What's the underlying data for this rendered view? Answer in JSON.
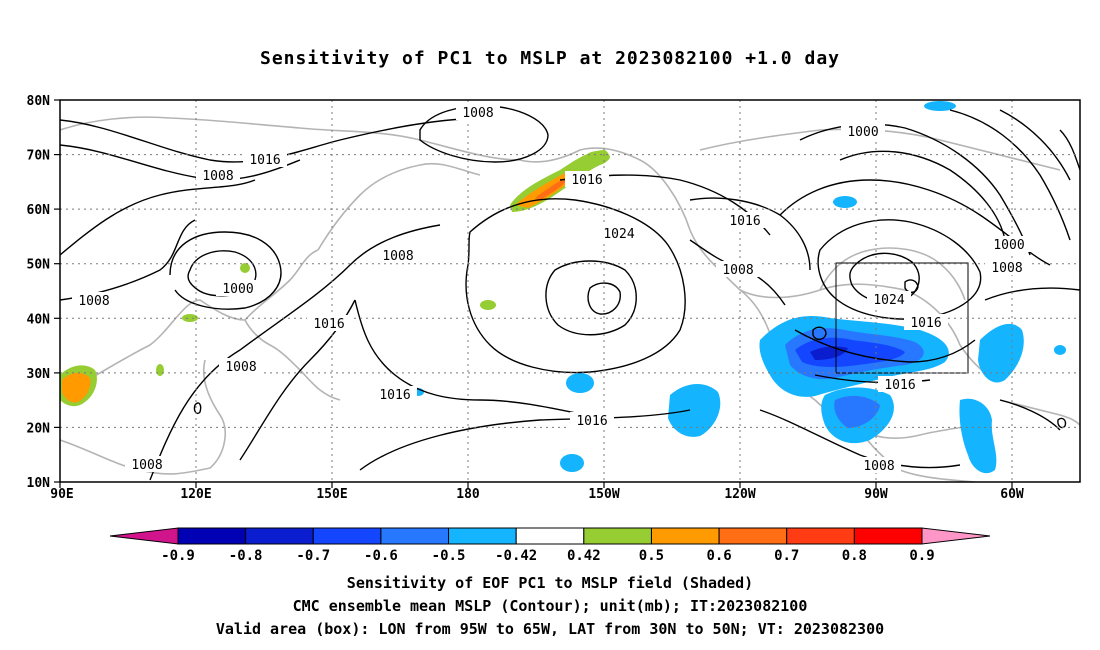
{
  "title": "Sensitivity of PC1 to MSLP at 2023082100 +1.0 day",
  "lat_labels": [
    "80N",
    "70N",
    "60N",
    "50N",
    "40N",
    "30N",
    "20N",
    "10N"
  ],
  "lon_labels": [
    "90E",
    "120E",
    "150E",
    "180",
    "150W",
    "120W",
    "90W",
    "60W"
  ],
  "contour_labels": [
    {
      "text": "1008"
    },
    {
      "text": "1016"
    },
    {
      "text": "1008"
    },
    {
      "text": "1016"
    },
    {
      "text": "1024"
    },
    {
      "text": "1008"
    },
    {
      "text": "1000"
    },
    {
      "text": "1008"
    },
    {
      "text": "1016"
    },
    {
      "text": "1008"
    },
    {
      "text": "1016"
    },
    {
      "text": "1016"
    },
    {
      "text": "1008"
    },
    {
      "text": "1016"
    },
    {
      "text": "1008"
    },
    {
      "text": "1000"
    },
    {
      "text": "1000"
    },
    {
      "text": "1008"
    },
    {
      "text": "1024"
    },
    {
      "text": "1016"
    },
    {
      "text": "1016"
    },
    {
      "text": "1008"
    }
  ],
  "colorbar": {
    "labels": [
      "-0.9",
      "-0.8",
      "-0.7",
      "-0.6",
      "-0.5",
      "-0.42",
      "0.42",
      "0.5",
      "0.6",
      "0.7",
      "0.8",
      "0.9"
    ],
    "colors": [
      "#0000b4",
      "#0a1ed0",
      "#1446ff",
      "#2878ff",
      "#14b4ff",
      "#ffffff",
      "#96cd32",
      "#ff9b00",
      "#ff6e14",
      "#ff3c14",
      "#ff0000"
    ],
    "under_color": "#d2148c",
    "over_color": "#ff96c8"
  },
  "captions": {
    "line1": "Sensitivity of EOF PC1 to MSLP field (Shaded)",
    "line2": "CMC ensemble mean MSLP (Contour); unit(mb); IT:2023082100",
    "line3": "Valid area (box): LON from 95W to 65W, LAT from 30N to 50N; VT: 2023082300"
  }
}
